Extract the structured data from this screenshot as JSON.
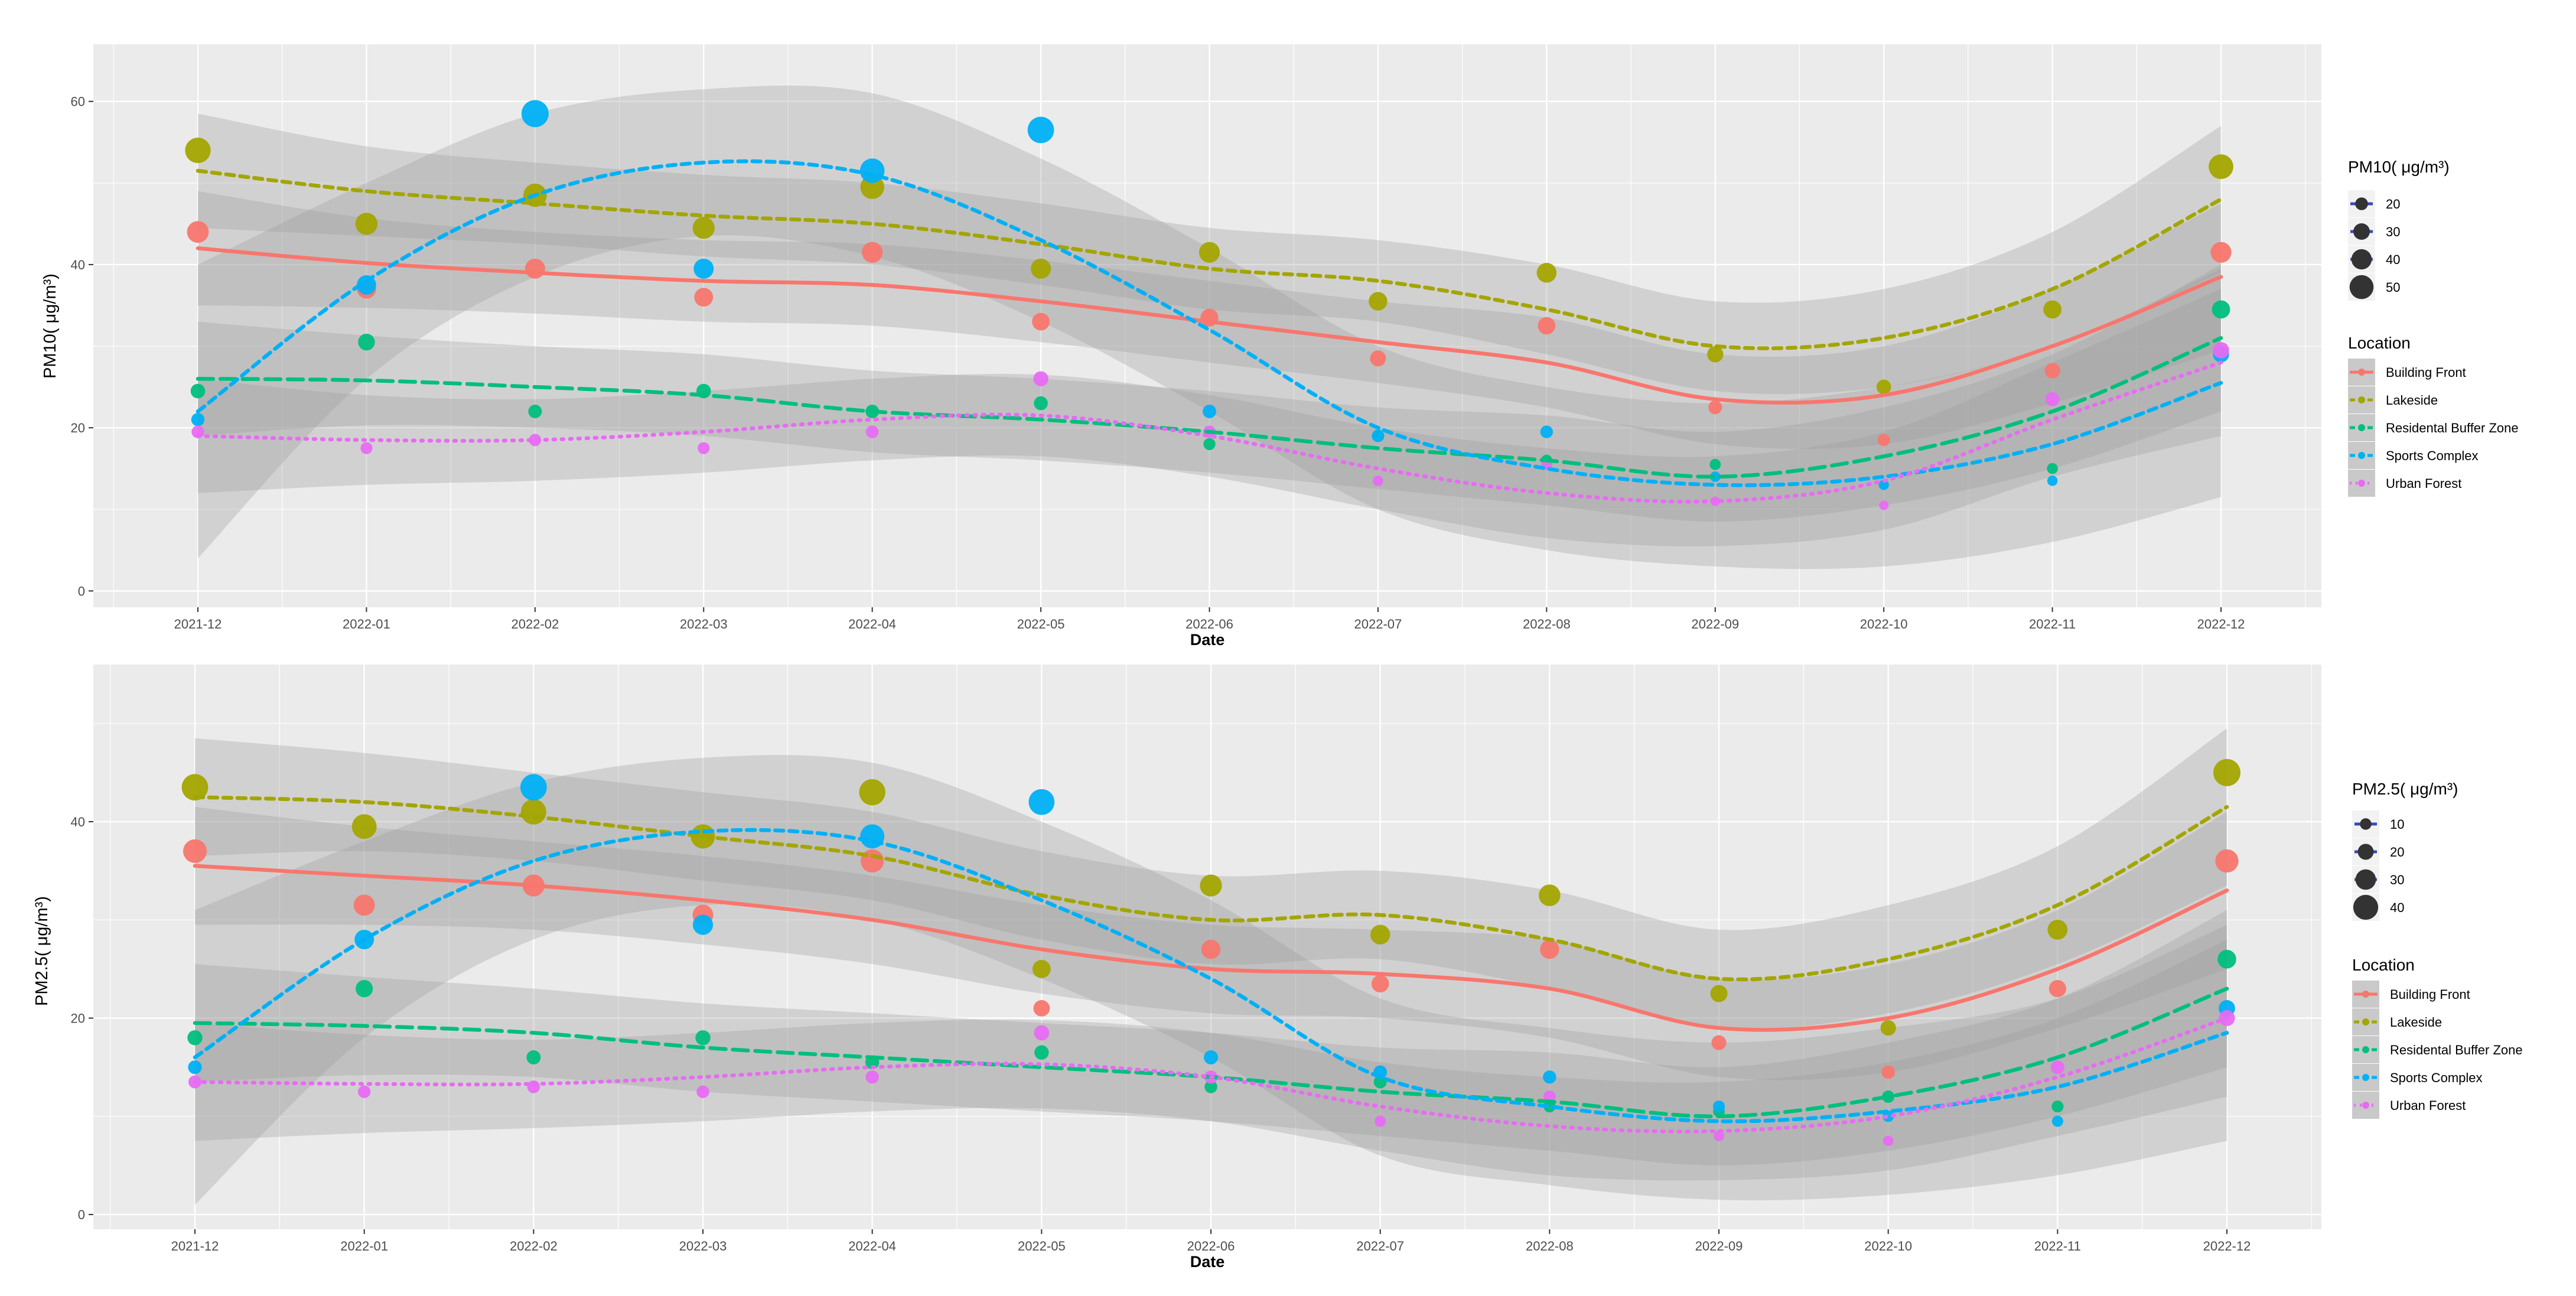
{
  "palette": {
    "Building Front": "#F8766D",
    "Lakeside": "#A3A500",
    "Residental Buffer Zone": "#00BF7D",
    "Sports Complex": "#00B0F6",
    "Urban Forest": "#E76BF3",
    "panel_bg": "#EBEBEB",
    "ribbon": "#9A9A9A",
    "size_legend_point": "#3A4AB8"
  },
  "chart_data": [
    {
      "type": "scatter",
      "name": "pm10",
      "title": "",
      "xlabel": "Date",
      "ylabel": "PM10( μg/m³)",
      "ylim": [
        -2,
        67
      ],
      "yticks": [
        0,
        20,
        40,
        60
      ],
      "xticks": [
        "2021-12",
        "2022-01",
        "2022-02",
        "2022-03",
        "2022-04",
        "2022-05",
        "2022-06",
        "2022-07",
        "2022-08",
        "2022-09",
        "2022-10",
        "2022-11",
        "2022-12"
      ],
      "size_legend": {
        "title": "PM10( μg/m³)",
        "breaks": [
          20,
          30,
          40,
          50
        ]
      },
      "color_legend": {
        "title": "Location",
        "items": [
          "Building Front",
          "Lakeside",
          "Residental Buffer Zone",
          "Sports Complex",
          "Urban Forest"
        ]
      },
      "series": [
        {
          "name": "Building Front",
          "dash": "solid",
          "points": [
            44,
            37,
            39.5,
            36,
            41.5,
            33,
            33.5,
            28.5,
            32.5,
            22.5,
            18.5,
            27,
            41.5
          ],
          "smooth": [
            42,
            40.2,
            39,
            38,
            37.5,
            35.5,
            33,
            30.5,
            28,
            23.5,
            24,
            30,
            38.5
          ],
          "band": [
            7,
            5.5,
            5,
            5,
            5,
            5,
            5,
            5,
            5.5,
            5.5,
            6,
            7,
            9
          ]
        },
        {
          "name": "Lakeside",
          "dash": "dashed",
          "points": [
            54,
            45,
            48.5,
            44.5,
            49.5,
            39.5,
            41.5,
            35.5,
            39,
            29,
            25,
            34.5,
            52
          ],
          "smooth": [
            51.5,
            49,
            47.5,
            46,
            45,
            42.5,
            39.5,
            38,
            34.5,
            30,
            31,
            37,
            48
          ],
          "band": [
            7,
            5.5,
            5,
            5,
            5,
            5,
            5,
            5,
            5.5,
            5.5,
            6,
            7,
            9
          ]
        },
        {
          "name": "Residental Buffer Zone",
          "dash": "longdash",
          "points": [
            24.5,
            30.5,
            22,
            24.5,
            22,
            23,
            18,
            19,
            16,
            15.5,
            13,
            15,
            34.5
          ],
          "smooth": [
            26,
            25.8,
            25,
            24,
            22,
            21,
            19.5,
            17.5,
            16,
            14,
            16.5,
            22,
            31
          ],
          "band": [
            7,
            5.5,
            5,
            5,
            5,
            5,
            5,
            5,
            5.5,
            5.5,
            6,
            7,
            9
          ]
        },
        {
          "name": "Sports Complex",
          "dash": "dashed",
          "points": [
            21,
            37.5,
            58.5,
            39.5,
            51.5,
            56.5,
            22,
            19,
            19.5,
            14,
            13,
            13.5,
            29
          ],
          "smooth": [
            22,
            38,
            48.5,
            52.5,
            51,
            43,
            32,
            20,
            15,
            13,
            14,
            18,
            25.5
          ],
          "band": [
            18,
            12,
            10,
            9,
            10,
            10,
            10,
            10,
            10,
            10,
            11,
            12,
            14
          ]
        },
        {
          "name": "Urban Forest",
          "dash": "dotted",
          "points": [
            19.5,
            17.5,
            18.5,
            17.5,
            19.5,
            26,
            19.5,
            13.5,
            15.5,
            11,
            10.5,
            23.5,
            29.5
          ],
          "smooth": [
            19,
            18.5,
            18.5,
            19.5,
            21,
            21.5,
            19,
            15,
            12,
            11,
            13.5,
            21,
            28
          ],
          "band": [
            7,
            5.5,
            5,
            5,
            5,
            5,
            5,
            5,
            5.5,
            5.5,
            6,
            7,
            9
          ]
        }
      ]
    },
    {
      "type": "scatter",
      "name": "pm25",
      "title": "",
      "xlabel": "Date",
      "ylabel": "PM2.5( μg/m³)",
      "ylim": [
        -1.5,
        56
      ],
      "yticks": [
        0,
        20,
        40
      ],
      "xticks": [
        "2021-12",
        "2022-01",
        "2022-02",
        "2022-03",
        "2022-04",
        "2022-05",
        "2022-06",
        "2022-07",
        "2022-08",
        "2022-09",
        "2022-10",
        "2022-11",
        "2022-12"
      ],
      "size_legend": {
        "title": "PM2.5( μg/m³)",
        "breaks": [
          10,
          20,
          30,
          40
        ]
      },
      "color_legend": {
        "title": "Location",
        "items": [
          "Building Front",
          "Lakeside",
          "Residental Buffer Zone",
          "Sports Complex",
          "Urban Forest"
        ]
      },
      "series": [
        {
          "name": "Building Front",
          "dash": "solid",
          "points": [
            37,
            31.5,
            33.5,
            30.5,
            36,
            21,
            27,
            23.5,
            27,
            17.5,
            14.5,
            23,
            36
          ],
          "smooth": [
            35.5,
            34.5,
            33.5,
            32,
            30,
            27,
            25,
            24.5,
            23,
            19,
            20,
            25,
            33
          ],
          "band": [
            6,
            5,
            4.5,
            4.5,
            4.5,
            4.5,
            4.5,
            4.5,
            5,
            5,
            5.5,
            6,
            8
          ]
        },
        {
          "name": "Lakeside",
          "dash": "dashed",
          "points": [
            43.5,
            39.5,
            41,
            38.5,
            43,
            25,
            33.5,
            28.5,
            32.5,
            22.5,
            19,
            29,
            45
          ],
          "smooth": [
            42.5,
            42,
            40.5,
            38.5,
            36.5,
            32.5,
            30,
            30.5,
            28,
            24,
            26,
            31.5,
            41.5
          ],
          "band": [
            6,
            5,
            4.5,
            4.5,
            4.5,
            4.5,
            4.5,
            4.5,
            5,
            5,
            5.5,
            6,
            8
          ]
        },
        {
          "name": "Residental Buffer Zone",
          "dash": "longdash",
          "points": [
            18,
            23,
            16,
            18,
            15.5,
            16.5,
            13,
            13.5,
            11,
            10.5,
            12,
            11,
            26
          ],
          "smooth": [
            19.5,
            19.2,
            18.5,
            17,
            16,
            15,
            14,
            12.5,
            11.5,
            10,
            12,
            16,
            23
          ],
          "band": [
            6,
            5,
            4.5,
            4.5,
            4.5,
            4.5,
            4.5,
            4.5,
            5,
            5,
            5.5,
            6,
            8
          ]
        },
        {
          "name": "Sports Complex",
          "dash": "dashed",
          "points": [
            15,
            28,
            43.5,
            29.5,
            38.5,
            42,
            16,
            14.5,
            14,
            11,
            10,
            9.5,
            21
          ],
          "smooth": [
            16,
            28,
            36,
            39,
            38,
            32,
            24,
            14,
            11,
            9.5,
            10.5,
            13,
            18.5
          ],
          "band": [
            15,
            10,
            8,
            7.5,
            8,
            8,
            8,
            8,
            8,
            8,
            8.5,
            9,
            11
          ]
        },
        {
          "name": "Urban Forest",
          "dash": "dotted",
          "points": [
            13.5,
            12.5,
            13,
            12.5,
            14,
            18.5,
            14,
            9.5,
            12,
            8,
            7.5,
            15,
            20
          ],
          "smooth": [
            13.5,
            13.3,
            13.3,
            14,
            15,
            15.3,
            14,
            11,
            9,
            8.5,
            10,
            14,
            20
          ],
          "band": [
            6,
            5,
            4.5,
            4.5,
            4.5,
            4.5,
            4.5,
            4.5,
            5,
            5,
            5.5,
            6,
            8
          ]
        }
      ]
    }
  ]
}
